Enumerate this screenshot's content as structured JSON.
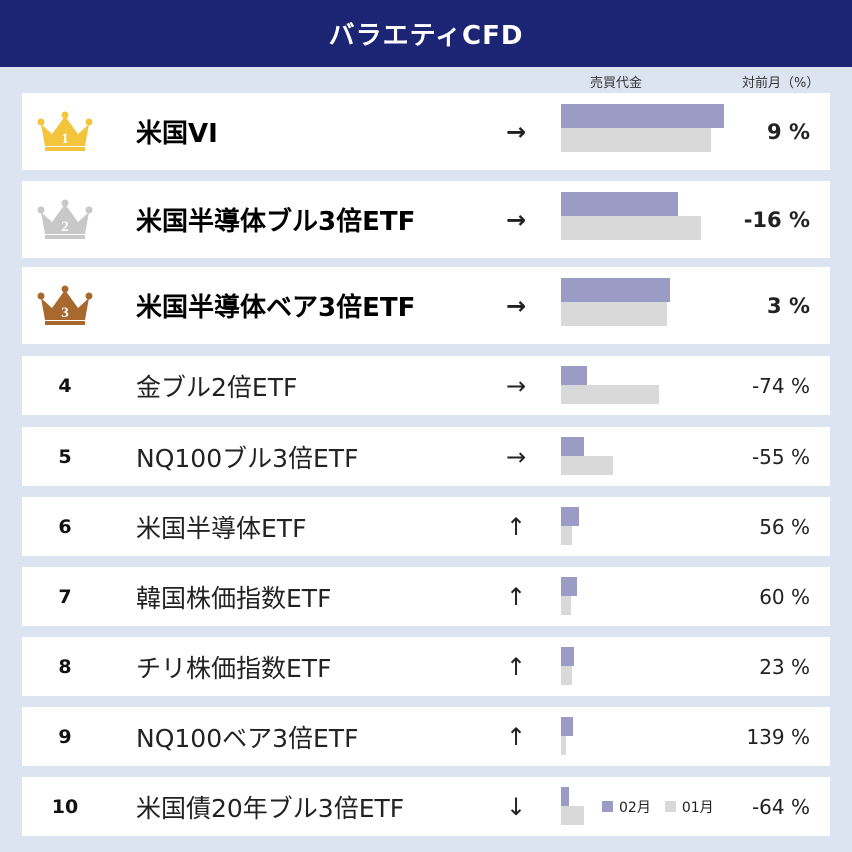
{
  "title": "バラエティCFD",
  "columns": {
    "volume": "売買代金",
    "change": "対前月（%）"
  },
  "legend": {
    "current": "02月",
    "previous": "01月"
  },
  "colors": {
    "header": "#1c2474",
    "current_bar": "#9a9cc6",
    "previous_bar": "#d9d9d9",
    "gold": "#f2c53d",
    "silver": "#c8c8c8",
    "bronze": "#a8692f"
  },
  "rows": [
    {
      "rank": "1",
      "name": "米国VI",
      "arrow": "→",
      "pct": "9 %",
      "cur": 1.0,
      "prev": 0.92,
      "badge": "crown-gold-icon"
    },
    {
      "rank": "2",
      "name": "米国半導体ブル3倍ETF",
      "arrow": "→",
      "pct": "-16 %",
      "cur": 0.72,
      "prev": 0.86,
      "badge": "crown-silver-icon"
    },
    {
      "rank": "3",
      "name": "米国半導体ベア3倍ETF",
      "arrow": "→",
      "pct": "3 %",
      "cur": 0.67,
      "prev": 0.65,
      "badge": "crown-bronze-icon"
    },
    {
      "rank": "4",
      "name": "金ブル2倍ETF",
      "arrow": "→",
      "pct": "-74 %",
      "cur": 0.16,
      "prev": 0.6
    },
    {
      "rank": "5",
      "name": "NQ100ブル3倍ETF",
      "arrow": "→",
      "pct": "-55 %",
      "cur": 0.14,
      "prev": 0.32
    },
    {
      "rank": "6",
      "name": "米国半導体ETF",
      "arrow": "↑",
      "pct": "56 %",
      "cur": 0.11,
      "prev": 0.07
    },
    {
      "rank": "7",
      "name": "韓国株価指数ETF",
      "arrow": "↑",
      "pct": "60 %",
      "cur": 0.1,
      "prev": 0.06
    },
    {
      "rank": "8",
      "name": "チリ株価指数ETF",
      "arrow": "↑",
      "pct": "23 %",
      "cur": 0.08,
      "prev": 0.065
    },
    {
      "rank": "9",
      "name": "NQ100ベア3倍ETF",
      "arrow": "↑",
      "pct": "139 %",
      "cur": 0.075,
      "prev": 0.03
    },
    {
      "rank": "10",
      "name": "米国債20年ブル3倍ETF",
      "arrow": "↓",
      "pct": "-64 %",
      "cur": 0.05,
      "prev": 0.14
    }
  ]
}
